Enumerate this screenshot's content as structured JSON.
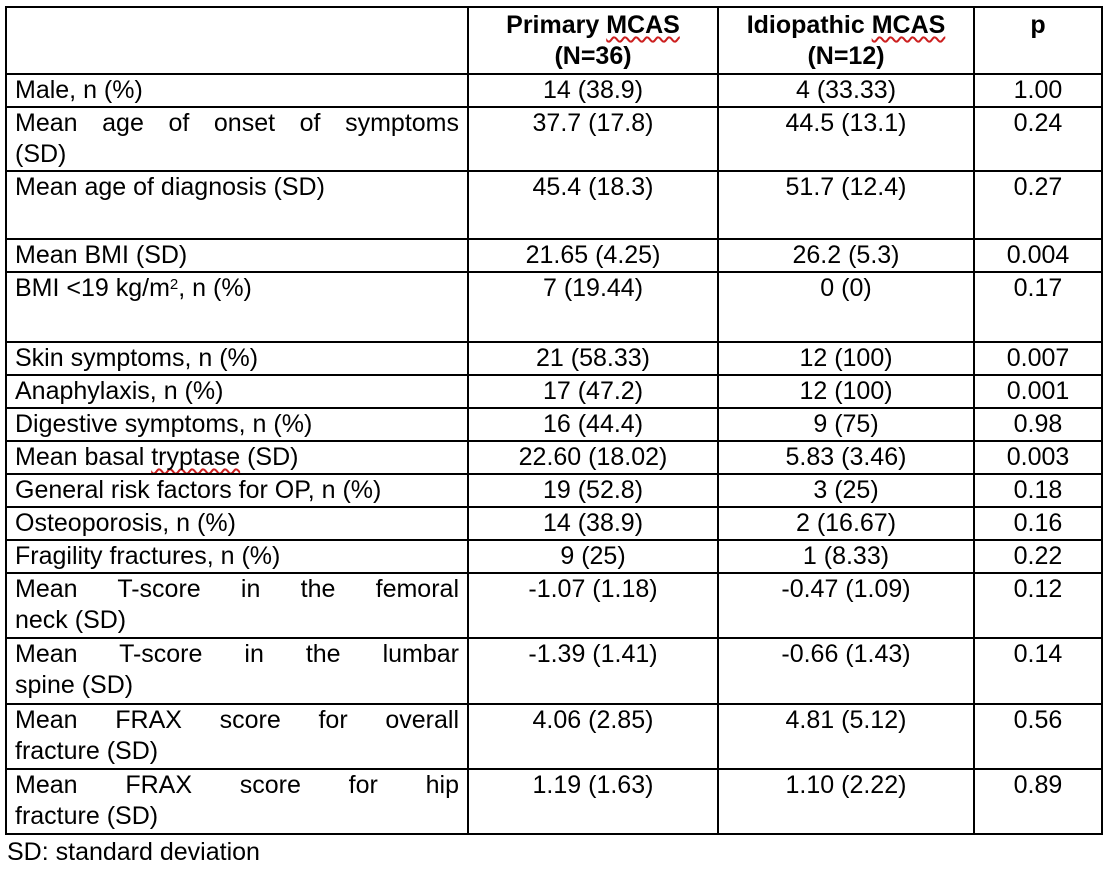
{
  "table": {
    "header": {
      "corner": "",
      "cols": [
        {
          "name_segments": [
            {
              "t": "Primary "
            },
            {
              "t": "MCAS",
              "squiggle": true
            }
          ],
          "n_label": "(N=36)"
        },
        {
          "name_segments": [
            {
              "t": "Idiopathic "
            },
            {
              "t": "MCAS",
              "squiggle": true
            }
          ],
          "n_label": "(N=12)"
        },
        {
          "name_segments": [
            {
              "t": "p"
            }
          ]
        }
      ]
    },
    "rows": [
      {
        "label_lines": [
          [
            {
              "t": "Male, n (%)"
            }
          ]
        ],
        "primary": "14 (38.9)",
        "idiopathic": "4 (33.33)",
        "p": "1.00"
      },
      {
        "label_lines": [
          [
            {
              "t": "Mean age of onset of symptoms"
            }
          ],
          [
            {
              "t": "(SD)"
            }
          ]
        ],
        "justify": true,
        "primary": "37.7 (17.8)",
        "idiopathic": "44.5 (13.1)",
        "p": "0.24"
      },
      {
        "label_lines": [
          [
            {
              "t": "Mean age of diagnosis (SD)"
            }
          ]
        ],
        "primary": "45.4 (18.3)",
        "idiopathic": "51.7 (12.4)",
        "p": "0.27"
      },
      {
        "label_lines": [
          [
            {
              "t": "Mean BMI (SD)"
            }
          ]
        ],
        "primary": "21.65 (4.25)",
        "idiopathic": "26.2 (5.3)",
        "p": "0.004"
      },
      {
        "label_lines": [
          [
            {
              "t": "BMI <19 kg/m"
            },
            {
              "t": "2",
              "sup": true
            },
            {
              "t": ", n (%)"
            }
          ]
        ],
        "primary": "7 (19.44)",
        "idiopathic": "0 (0)",
        "p": "0.17"
      },
      {
        "label_lines": [
          [
            {
              "t": "Skin symptoms, n (%)"
            }
          ]
        ],
        "primary": "21 (58.33)",
        "idiopathic": "12 (100)",
        "p": "0.007"
      },
      {
        "label_lines": [
          [
            {
              "t": "Anaphylaxis, n (%)"
            }
          ]
        ],
        "primary": "17 (47.2)",
        "idiopathic": "12 (100)",
        "p": "0.001"
      },
      {
        "label_lines": [
          [
            {
              "t": "Digestive symptoms, n (%)"
            }
          ]
        ],
        "primary": "16 (44.4)",
        "idiopathic": "9 (75)",
        "p": "0.98"
      },
      {
        "label_lines": [
          [
            {
              "t": "Mean basal "
            },
            {
              "t": "tryptase",
              "squiggle": true
            },
            {
              "t": " (SD)"
            }
          ]
        ],
        "primary": "22.60 (18.02)",
        "idiopathic": "5.83 (3.46)",
        "p": "0.003"
      },
      {
        "label_lines": [
          [
            {
              "t": "General risk factors for OP, n (%)"
            }
          ]
        ],
        "primary": "19 (52.8)",
        "idiopathic": "3 (25)",
        "p": "0.18"
      },
      {
        "label_lines": [
          [
            {
              "t": "Osteoporosis, n (%)"
            }
          ]
        ],
        "primary": "14 (38.9)",
        "idiopathic": "2 (16.67)",
        "p": "0.16"
      },
      {
        "label_lines": [
          [
            {
              "t": "Fragility fractures, n (%)"
            }
          ]
        ],
        "primary": "9 (25)",
        "idiopathic": "1 (8.33)",
        "p": "0.22"
      },
      {
        "label_lines": [
          [
            {
              "t": "Mean T-score in the femoral"
            }
          ],
          [
            {
              "t": "neck (SD)"
            }
          ]
        ],
        "justify": true,
        "primary": "-1.07 (1.18)",
        "idiopathic": "-0.47 (1.09)",
        "p": "0.12"
      },
      {
        "label_lines": [
          [
            {
              "t": "Mean T-score in the lumbar"
            }
          ],
          [
            {
              "t": "spine (SD)"
            }
          ]
        ],
        "justify": true,
        "primary": "-1.39 (1.41)",
        "idiopathic": "-0.66 (1.43)",
        "p": "0.14"
      },
      {
        "label_lines": [
          [
            {
              "t": "Mean FRAX score for overall"
            }
          ],
          [
            {
              "t": "fracture (SD)"
            }
          ]
        ],
        "justify": true,
        "primary": "4.06 (2.85)",
        "idiopathic": "4.81 (5.12)",
        "p": "0.56"
      },
      {
        "label_lines": [
          [
            {
              "t": "Mean FRAX score for hip"
            }
          ],
          [
            {
              "t": "fracture (SD)"
            }
          ]
        ],
        "justify": true,
        "primary": "1.19 (1.63)",
        "idiopathic": "1.10 (2.22)",
        "p": "0.89"
      }
    ],
    "footnote": "SD: standard deviation",
    "squiggle_color": "#cc1f1f"
  }
}
